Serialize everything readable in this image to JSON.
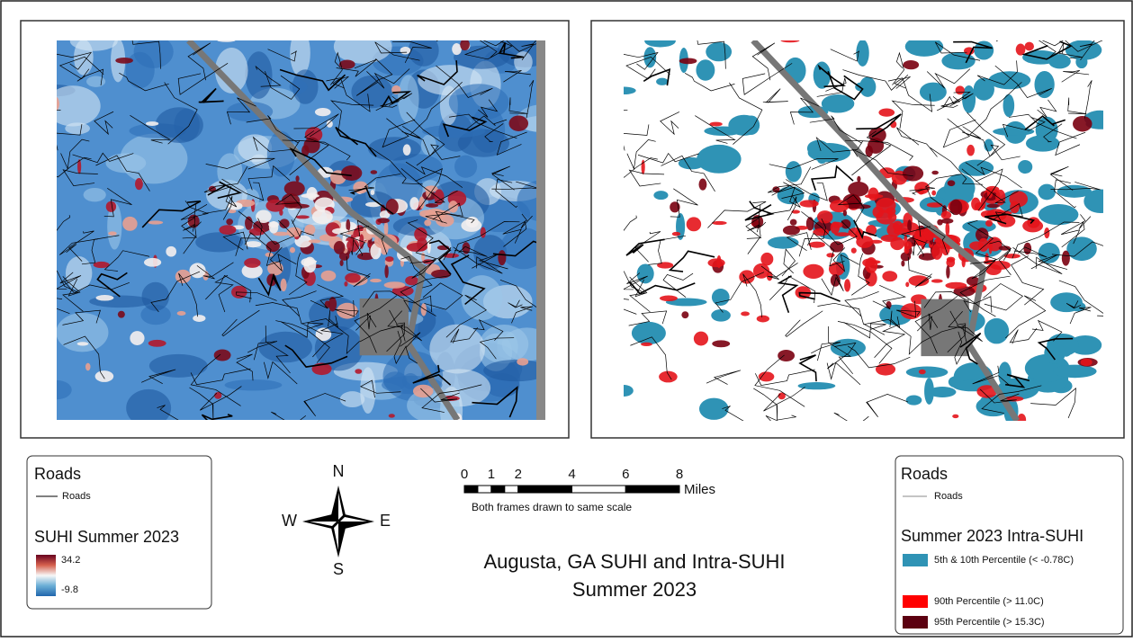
{
  "left_legend": {
    "title": "Roads",
    "roads_label": "Roads",
    "raster_title": "SUHI Summer 2023",
    "max_label": "34.2",
    "min_label": "-9.8"
  },
  "compass": {
    "n": "N",
    "s": "S",
    "e": "E",
    "w": "W"
  },
  "scale_bar": {
    "ticks": [
      0,
      1,
      2,
      4,
      6,
      8
    ],
    "unit": "Miles",
    "note": "Both frames drawn to same scale"
  },
  "title": {
    "line1": "Augusta, GA SUHI and Intra-SUHI",
    "line2": "Summer 2023"
  },
  "right_legend": {
    "title": "Roads",
    "roads_label": "Roads",
    "raster_title": "Summer 2023 Intra-SUHI",
    "entries": [
      {
        "label": "5th & 10th Percentile (< -0.78C)",
        "color": "#2f93b5"
      },
      {
        "label": "90th Percentile (> 11.0C)",
        "color": "#ff0000"
      },
      {
        "label": "95th Percentile (> 15.3C)",
        "color": "#5c0010"
      }
    ]
  }
}
